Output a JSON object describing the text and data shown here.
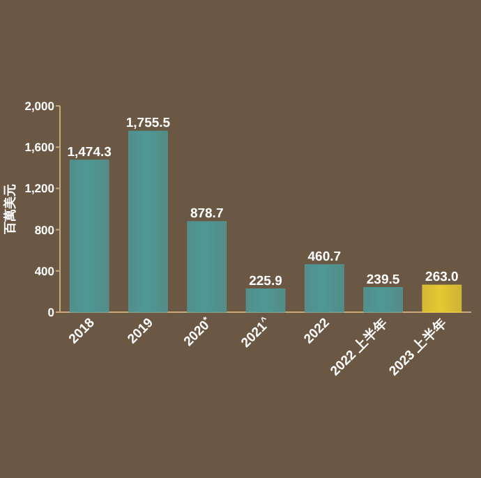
{
  "chart_data": {
    "type": "bar",
    "ylabel": "百萬美元",
    "categories": [
      "2018",
      "2019",
      "2020$^{*}$",
      "2021$^{^}$",
      "2022",
      "2022 上半年",
      "2023 上半年"
    ],
    "values": [
      1474.3,
      1755.5,
      878.7,
      225.9,
      460.7,
      239.5,
      263.0
    ],
    "colors": [
      "#4f9896",
      "#4f9896",
      "#4f9896",
      "#4f9896",
      "#4f9896",
      "#4f9896",
      "#e6c832"
    ],
    "value_labels": [
      "1,474.3",
      "1,755.5",
      "878.7",
      "225.9",
      "460.7",
      "239.5",
      "263.0"
    ],
    "ylim": [
      0,
      2000
    ],
    "yticks": [
      0,
      400,
      800,
      {
        "value": 1200,
        "label": "1,200"
      },
      {
        "value": 1600,
        "label": "1,600"
      },
      {
        "value": 2000,
        "label": "2,000"
      }
    ],
    "grid": false
  }
}
